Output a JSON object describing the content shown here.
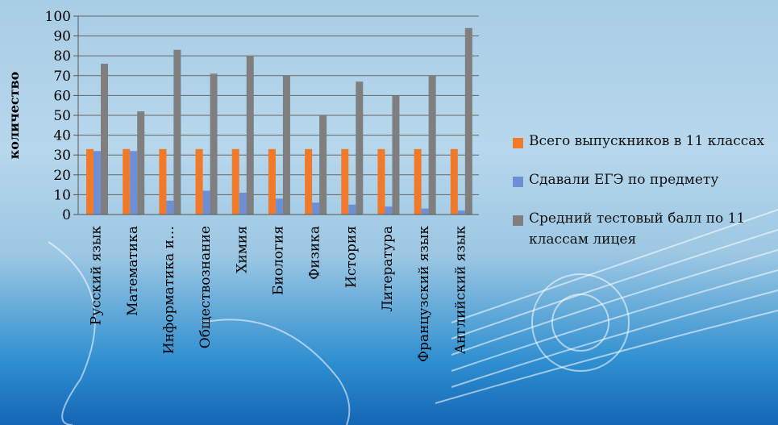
{
  "chart_data": {
    "type": "bar",
    "title": "",
    "xlabel": "",
    "ylabel": "количество",
    "ylim": [
      0,
      100
    ],
    "yticks": [
      0,
      10,
      20,
      30,
      40,
      50,
      60,
      70,
      80,
      90,
      100
    ],
    "grid": true,
    "legend_position": "right",
    "categories": [
      "Русский язык",
      "Математика",
      "Информатика и…",
      "Обществознание",
      "Химия",
      "Биология",
      "Физика",
      "История",
      "Литература",
      "Французский язык",
      "Английский язык"
    ],
    "series": [
      {
        "name": "Всего выпускников в 11 классах",
        "color": "#f07a2a",
        "values": [
          33,
          33,
          33,
          33,
          33,
          33,
          33,
          33,
          33,
          33,
          33
        ]
      },
      {
        "name": "Сдавали ЕГЭ по предмету",
        "color": "#6d8fd6",
        "values": [
          32,
          32,
          7,
          12,
          11,
          8,
          6,
          5,
          4,
          3,
          2
        ]
      },
      {
        "name": "Средний тестовый балл по 11 классам лицея",
        "color": "#7f7f7f",
        "values": [
          76,
          52,
          83,
          71,
          80,
          70,
          50,
          67,
          60,
          70,
          94
        ]
      }
    ]
  }
}
